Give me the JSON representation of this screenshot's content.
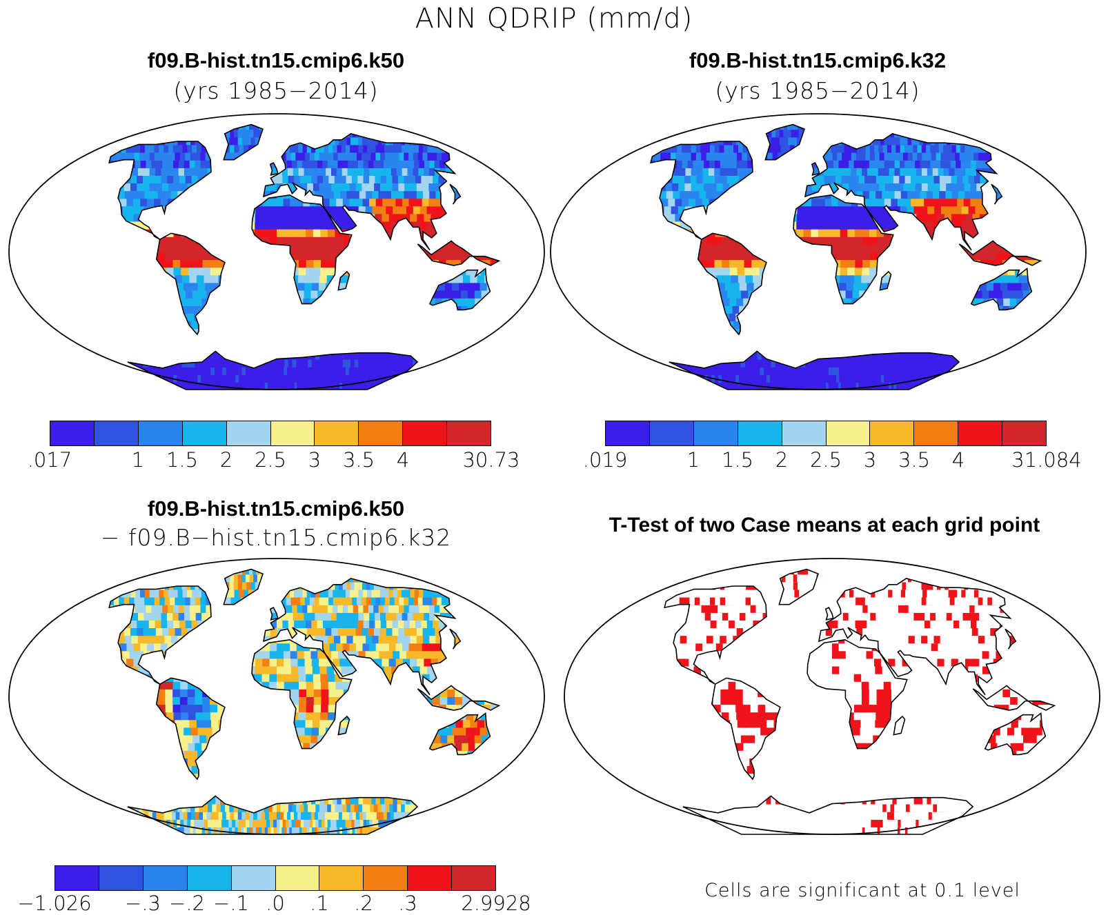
{
  "figure": {
    "title": "ANN QDRIP (mm/d)"
  },
  "palette_main": [
    "#3b1ee8",
    "#2f55e0",
    "#2a86ee",
    "#18b4ee",
    "#a3d4f0",
    "#f8f08a",
    "#f7b929",
    "#f27e14",
    "#f0141a",
    "#d2262b"
  ],
  "palette_diff": [
    "#3b1ee8",
    "#2f55e0",
    "#2a86ee",
    "#18b4ee",
    "#a3d4f0",
    "#f8f08a",
    "#f7b929",
    "#f27e14",
    "#f0141a",
    "#d2262b"
  ],
  "panels": {
    "top_left": {
      "title": "f09.B-hist.tn15.cmip6.k50",
      "subtitle": "(yrs 1985−2014)",
      "colorbar_labels": [
        ".017",
        "1",
        "1.5",
        "2",
        "2.5",
        "3",
        "3.5",
        "4",
        "30.73"
      ],
      "colorbar_levels": [
        0.017,
        0.5,
        1,
        1.5,
        2,
        2.5,
        3,
        3.5,
        4,
        30.73
      ]
    },
    "top_right": {
      "title": "f09.B-hist.tn15.cmip6.k32",
      "subtitle": "(yrs 1985−2014)",
      "colorbar_labels": [
        ".019",
        "1",
        "1.5",
        "2",
        "2.5",
        "3",
        "3.5",
        "4",
        "31.084"
      ],
      "colorbar_levels": [
        0.019,
        0.5,
        1,
        1.5,
        2,
        2.5,
        3,
        3.5,
        4,
        31.084
      ]
    },
    "bottom_left": {
      "title": "f09.B-hist.tn15.cmip6.k50",
      "subtitle": "− f09.B−hist.tn15.cmip6.k32",
      "colorbar_labels": [
        "−1.026",
        "−.3",
        "−.2",
        "−.1",
        ".0",
        ".1",
        ".2",
        ".3",
        "2.9928"
      ],
      "colorbar_levels": [
        -1.026,
        -0.4,
        -0.3,
        -0.2,
        -0.1,
        0.0,
        0.1,
        0.2,
        0.3,
        2.9928
      ]
    },
    "bottom_right": {
      "title": "T-Test of two Case means at each grid point",
      "note": "Cells are significant at 0.1 level",
      "significant_color": "#f0141a"
    }
  }
}
